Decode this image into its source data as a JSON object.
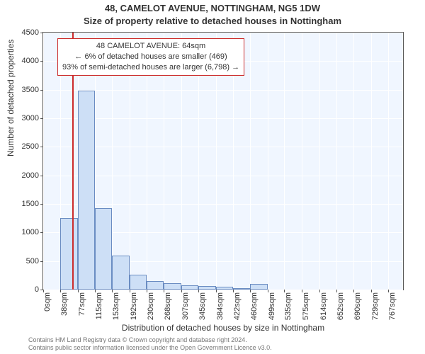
{
  "titles": {
    "main": "48, CAMELOT AVENUE, NOTTINGHAM, NG5 1DW",
    "sub": "Size of property relative to detached houses in Nottingham"
  },
  "axes": {
    "ylabel": "Number of detached properties",
    "xlabel": "Distribution of detached houses by size in Nottingham",
    "ylim": [
      0,
      4500
    ],
    "ytick_step": 500,
    "yticks": [
      0,
      500,
      1000,
      1500,
      2000,
      2500,
      3000,
      3500,
      4000,
      4500
    ]
  },
  "callout": {
    "line1": "48 CAMELOT AVENUE: 64sqm",
    "line2": "← 6% of detached houses are smaller (469)",
    "line3": "93% of semi-detached houses are larger (6,798) →",
    "border_color": "#cc2b2b",
    "font_size": 11
  },
  "marker": {
    "x_value": 64,
    "color": "#cc2b2b"
  },
  "histogram": {
    "type": "histogram",
    "x_min": 0,
    "x_max": 800,
    "bin_width": 38.4,
    "bar_fill": "#cddff6",
    "bar_stroke": "#6a8cc2",
    "background": "#f0f6ff",
    "grid_color": "#ffffff",
    "border_color": "#555555",
    "bin_lefts": [
      0,
      38,
      77,
      115,
      153,
      192,
      230,
      268,
      307,
      345,
      384,
      422,
      460,
      499,
      535,
      575,
      614,
      652,
      690,
      729,
      767
    ],
    "xtick_labels": [
      "0sqm",
      "38sqm",
      "77sqm",
      "115sqm",
      "153sqm",
      "192sqm",
      "230sqm",
      "268sqm",
      "307sqm",
      "345sqm",
      "384sqm",
      "422sqm",
      "460sqm",
      "499sqm",
      "535sqm",
      "575sqm",
      "614sqm",
      "652sqm",
      "690sqm",
      "729sqm",
      "767sqm"
    ],
    "values": [
      0,
      1250,
      3480,
      1430,
      600,
      260,
      150,
      110,
      80,
      60,
      50,
      30,
      100,
      0,
      0,
      0,
      0,
      0,
      0,
      0
    ]
  },
  "credits": {
    "line1": "Contains HM Land Registry data © Crown copyright and database right 2024.",
    "line2": "Contains public sector information licensed under the Open Government Licence v3.0."
  },
  "style": {
    "title_fontsize": 13,
    "axis_label_fontsize": 12,
    "tick_fontsize": 11,
    "credits_fontsize": 9,
    "credits_color": "#777777",
    "text_color": "#333333",
    "page_background": "#ffffff"
  }
}
